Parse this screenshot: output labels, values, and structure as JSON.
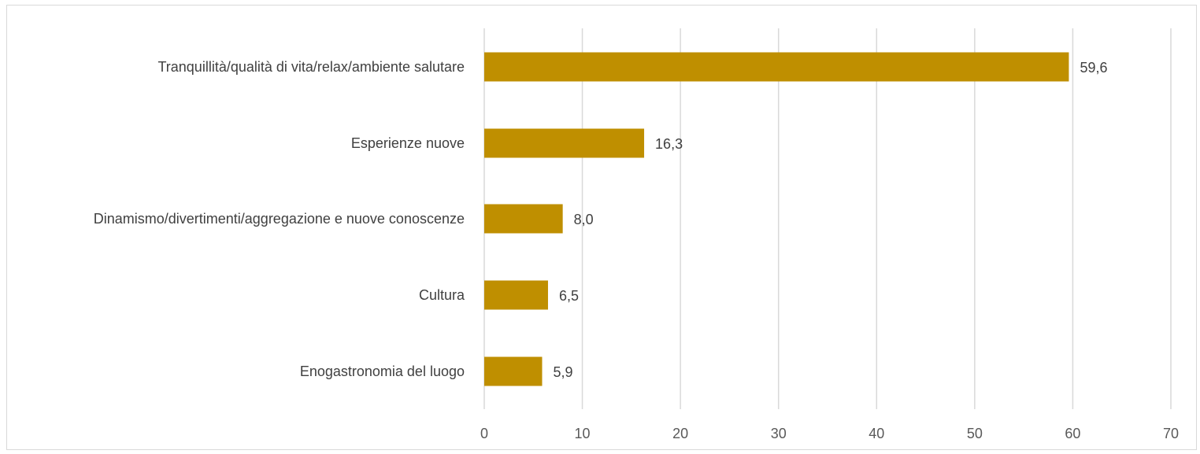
{
  "chart_data": {
    "type": "bar",
    "orientation": "horizontal",
    "categories": [
      "Tranquillità/qualità di vita/relax/ambiente salutare",
      "Esperienze nuove",
      "Dinamismo/divertimenti/aggregazione e nuove conoscenze",
      "Cultura",
      "Enogastronomia del luogo"
    ],
    "values": [
      59.6,
      16.3,
      8.0,
      6.5,
      5.9
    ],
    "data_labels": [
      "59,6",
      "16,3",
      "8,0",
      "6,5",
      "5,9"
    ],
    "xlim": [
      0,
      70
    ],
    "x_ticks": [
      0,
      10,
      20,
      30,
      40,
      50,
      60,
      70
    ],
    "grid": "vertical",
    "legend": "none",
    "bar_color": "#bf8f00",
    "gridline_color": "#d9d9d9"
  }
}
